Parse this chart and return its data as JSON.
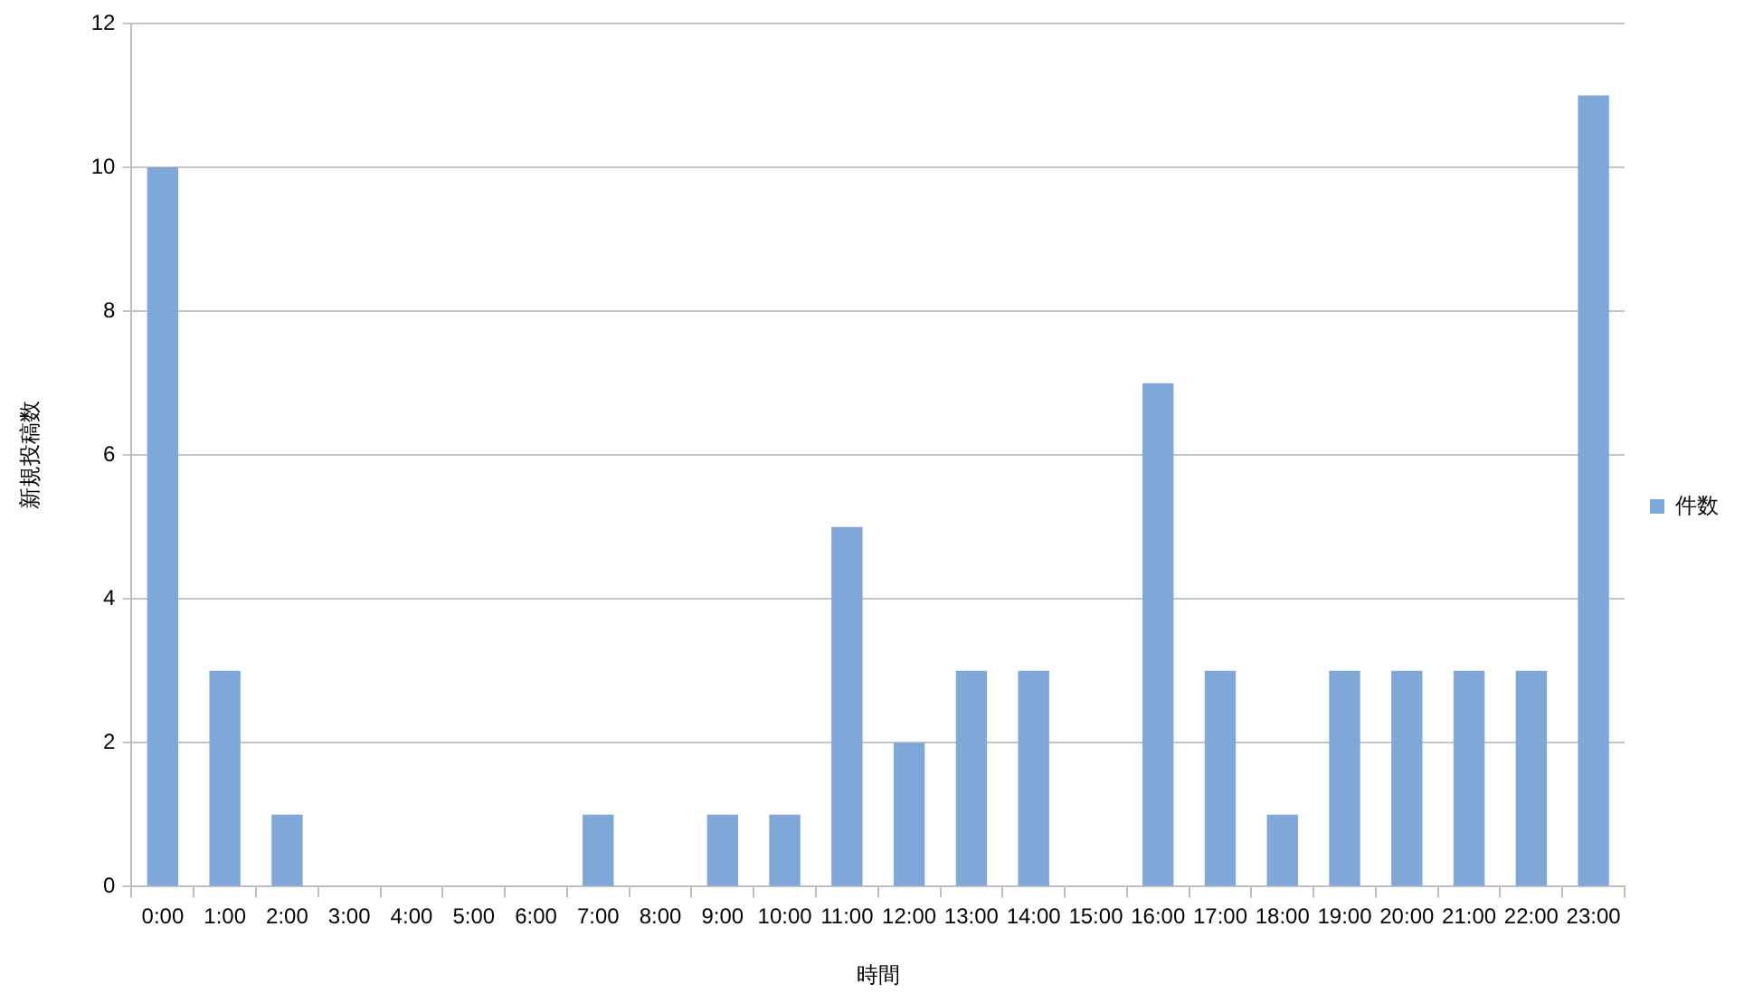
{
  "chart_data": {
    "type": "bar",
    "categories": [
      "0:00",
      "1:00",
      "2:00",
      "3:00",
      "4:00",
      "5:00",
      "6:00",
      "7:00",
      "8:00",
      "9:00",
      "10:00",
      "11:00",
      "12:00",
      "13:00",
      "14:00",
      "15:00",
      "16:00",
      "17:00",
      "18:00",
      "19:00",
      "20:00",
      "21:00",
      "22:00",
      "23:00"
    ],
    "series": [
      {
        "name": "件数",
        "color": "#7fa8d9",
        "values": [
          10,
          3,
          1,
          0,
          0,
          0,
          0,
          1,
          0,
          1,
          1,
          5,
          2,
          3,
          3,
          0,
          7,
          3,
          1,
          3,
          3,
          3,
          3,
          11
        ]
      }
    ],
    "xlabel": "時間",
    "ylabel": "新規投稿数",
    "ylim": [
      0,
      12
    ],
    "yticks": [
      0,
      2,
      4,
      6,
      8,
      10,
      12
    ],
    "grid": "y",
    "legend": "right"
  }
}
